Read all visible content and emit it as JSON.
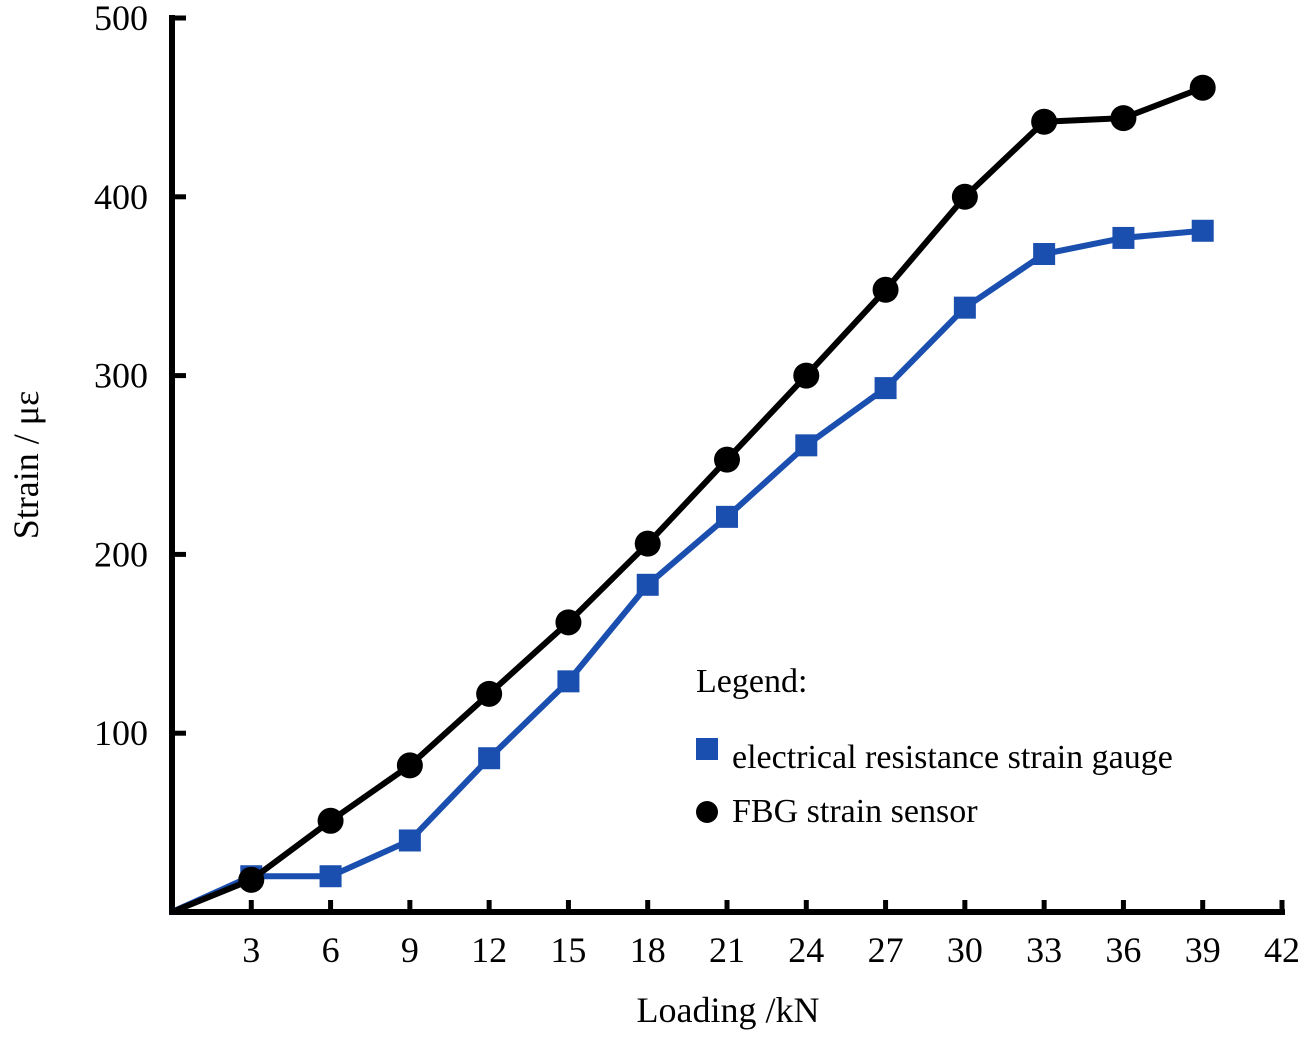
{
  "chart_data": {
    "type": "line",
    "xlabel": "Loading /kN",
    "ylabel": "Strain / με",
    "xlim": [
      0,
      42
    ],
    "ylim": [
      0,
      500
    ],
    "x_ticks": [
      3,
      6,
      9,
      12,
      15,
      18,
      21,
      24,
      27,
      30,
      33,
      36,
      39,
      42
    ],
    "y_ticks": [
      100,
      200,
      300,
      400,
      500
    ],
    "grid": false,
    "legend": {
      "title": "Legend:",
      "placement": "lower-right"
    },
    "series": [
      {
        "name": "electrical resistance strain gauge",
        "color": "#1a4fb0",
        "marker": "square",
        "x": [
          0,
          3,
          6,
          9,
          12,
          15,
          18,
          21,
          24,
          27,
          30,
          33,
          36,
          39
        ],
        "y": [
          0,
          20,
          20,
          40,
          86,
          129,
          183,
          221,
          261,
          293,
          338,
          368,
          377,
          381
        ]
      },
      {
        "name": "FBG strain sensor",
        "color": "#000000",
        "marker": "circle",
        "x": [
          0,
          3,
          6,
          9,
          12,
          15,
          18,
          21,
          24,
          27,
          30,
          33,
          36,
          39
        ],
        "y": [
          0,
          18,
          51,
          82,
          122,
          162,
          206,
          253,
          300,
          348,
          400,
          442,
          444,
          461
        ]
      }
    ]
  }
}
